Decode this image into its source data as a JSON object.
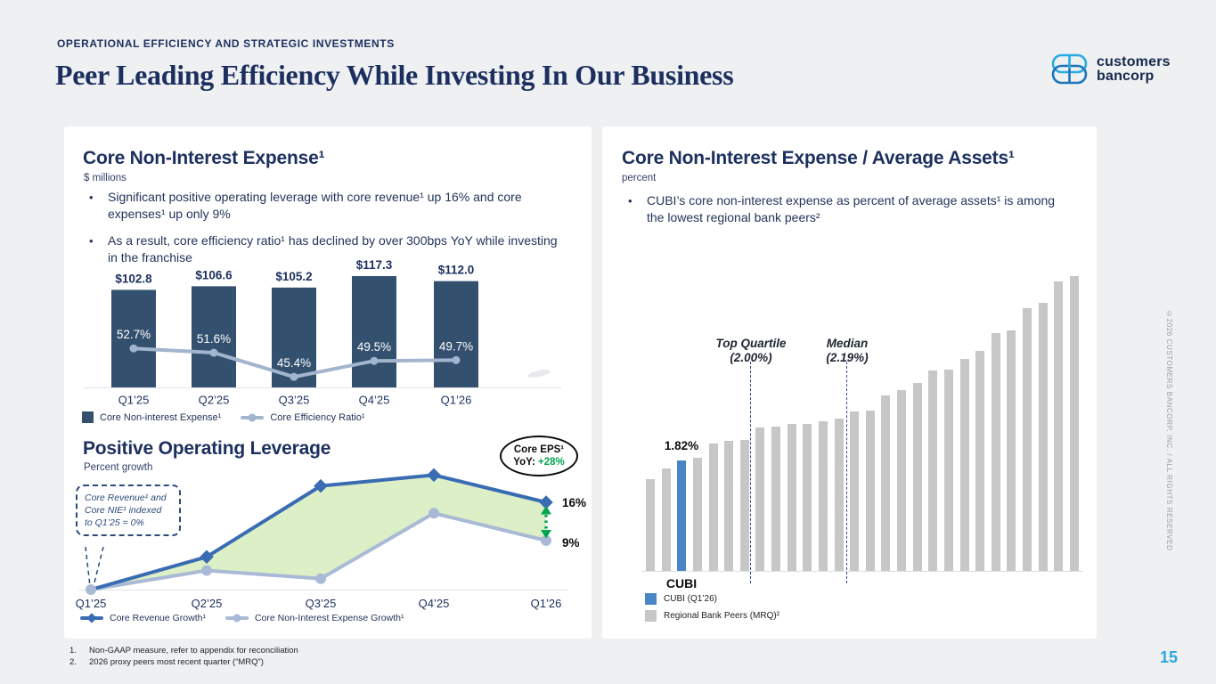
{
  "slide": {
    "eyebrow": "OPERATIONAL EFFICIENCY AND STRATEGIC INVESTMENTS",
    "title": "Peer Leading Efficiency While Investing In Our Business",
    "logo": {
      "line1": "customers",
      "line2": "bancorp"
    },
    "page_number": "15",
    "copyright": "©2026 CUSTOMERS BANCORP, INC. / ALL RIGHTS RESERVED"
  },
  "left_panel": {
    "expense": {
      "title": "Core Non-Interest Expense¹",
      "unit": "$ millions",
      "bullets": [
        "Significant positive operating leverage with core revenue¹ up 16% and core expenses¹ up only 9%",
        "As a result, core efficiency ratio¹ has declined by over 300bps YoY while investing in the franchise"
      ]
    },
    "leverage": {
      "title": "Positive Operating Leverage",
      "unit": "Percent growth",
      "callout": "Core Revenue¹ and Core NIE¹ indexed to Q1’25 = 0%",
      "badge": {
        "title": "Core EPS¹",
        "label": "YoY:",
        "value": "+28%"
      }
    }
  },
  "right_panel": {
    "title": "Core Non-Interest Expense / Average Assets¹",
    "unit": "percent",
    "bullets": [
      "CUBI’s core non-interest expense as percent of average assets¹ is among the lowest regional bank peers²"
    ]
  },
  "footnotes": [
    {
      "num": "1.",
      "text": "Non-GAAP measure, refer to appendix for reconciliation"
    },
    {
      "num": "2.",
      "text": "2026 proxy peers most recent quarter (“MRQ”)"
    }
  ],
  "colors": {
    "navy": "#1c2f5e",
    "bar_navy": "#33506f",
    "efficiency_line": "#a3b5ce",
    "revenue_blue": "#3a6cb4",
    "nie_line_gray": "#a9bad6",
    "green_fill": "#d8edc0",
    "green_accent": "#00a350",
    "cubi_blue": "#4a86c6",
    "peer_gray": "#c7c7c7",
    "page_blue": "#2ba7e0",
    "logo_light_blue": "#29abe2",
    "logo_blue": "#1c75bc"
  },
  "chart_data": [
    {
      "id": "core_non_interest_expense",
      "type": "bar",
      "title": "Core Non-Interest Expense¹",
      "ylabel": "$ millions",
      "categories": [
        "Q1’25",
        "Q2’25",
        "Q3’25",
        "Q4’25",
        "Q1’26"
      ],
      "series": [
        {
          "name": "Core Non-interest Expense¹",
          "type": "bar",
          "values": [
            102.8,
            106.6,
            105.2,
            117.3,
            112.0
          ],
          "labels": [
            "$102.8",
            "$106.6",
            "$105.2",
            "$117.3",
            "$112.0"
          ],
          "color": "#33506f"
        },
        {
          "name": "Core Efficiency Ratio¹",
          "type": "line",
          "values": [
            52.7,
            51.6,
            45.4,
            49.5,
            49.7
          ],
          "labels": [
            "52.7%",
            "51.6%",
            "45.4%",
            "49.5%",
            "49.7%"
          ],
          "color": "#a3b5ce"
        }
      ],
      "legend_position": "bottom"
    },
    {
      "id": "positive_operating_leverage",
      "type": "line",
      "title": "Positive Operating Leverage",
      "ylabel": "Percent growth",
      "categories": [
        "Q1’25",
        "Q2’25",
        "Q3’25",
        "Q4’25",
        "Q1’26"
      ],
      "ylim": [
        0,
        23
      ],
      "series": [
        {
          "name": "Core Revenue Growth¹",
          "values": [
            0,
            6,
            19,
            21,
            16
          ],
          "color": "#3a6cb4",
          "marker": "diamond",
          "end_label": "16%"
        },
        {
          "name": "Core Non-Interest Expense Growth¹",
          "values": [
            0,
            3.5,
            2,
            14,
            9
          ],
          "color": "#a9bad6",
          "marker": "circle",
          "end_label": "9%"
        }
      ],
      "area_between_color": "#d8edc0",
      "end_delta_color": "#00a350",
      "legend_position": "bottom"
    },
    {
      "id": "core_nie_over_average_assets",
      "type": "bar",
      "title": "Core Non-Interest Expense / Average Assets¹",
      "ylabel": "percent",
      "ylim": [
        0.99,
        3.3
      ],
      "values": [
        1.68,
        1.76,
        1.82,
        1.84,
        1.95,
        1.97,
        1.98,
        2.07,
        2.08,
        2.1,
        2.1,
        2.12,
        2.14,
        2.19,
        2.2,
        2.31,
        2.35,
        2.41,
        2.5,
        2.51,
        2.59,
        2.65,
        2.78,
        2.8,
        2.97,
        3.01,
        3.17,
        3.21
      ],
      "highlight_index": 2,
      "highlight_value_label": "1.82%",
      "highlight_label": "CUBI",
      "markers": [
        {
          "title": "Top Quartile",
          "value_label": "(2.00%)",
          "value": 2.0
        },
        {
          "title": "Median",
          "value_label": "(2.19%)",
          "value": 2.19
        }
      ],
      "legend": [
        {
          "label": "CUBI (Q1’26)",
          "color": "#4a86c6"
        },
        {
          "label": "Regional Bank Peers (MRQ)²",
          "color": "#c7c7c7"
        }
      ],
      "legend_position": "bottom"
    }
  ]
}
